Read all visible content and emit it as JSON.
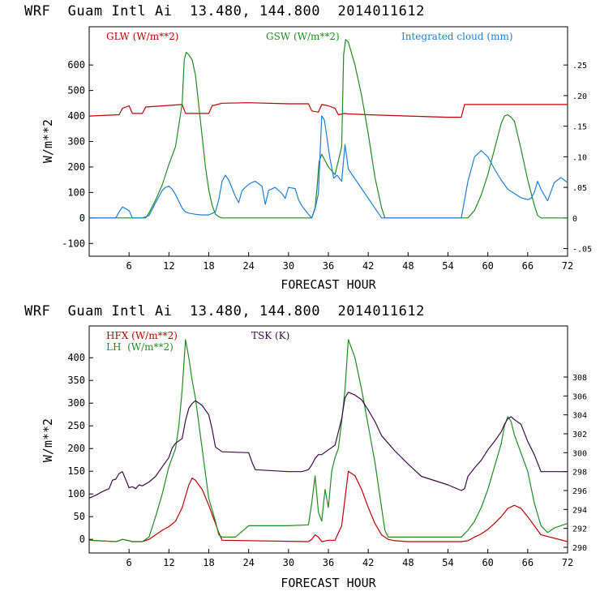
{
  "charts": [
    {
      "title": "WRF  Guam Intl Ai  13.480, 144.800  2014011612",
      "xlabel": "FORECAST HOUR",
      "ylabel": "W/m**2",
      "xlim": [
        0,
        72
      ],
      "ylim": [
        -150,
        750
      ],
      "left_ticks": [
        -100,
        0,
        100,
        200,
        300,
        400,
        500,
        600
      ],
      "x_ticks": [
        6,
        12,
        18,
        24,
        30,
        36,
        42,
        48,
        54,
        60,
        66,
        72
      ],
      "right_axis": {
        "ylim": [
          -0.0625,
          0.3125
        ],
        "ticks": [
          ".25",
          ".20",
          ".15",
          ".10",
          ".05",
          "0",
          "-.05"
        ],
        "tick_values": [
          0.25,
          0.2,
          0.15,
          0.1,
          0.05,
          0,
          -0.05
        ]
      },
      "legend": [
        {
          "label": "GLW (W/m**2)",
          "color": "#c00000"
        },
        {
          "label": "GSW (W/m**2)",
          "color": "#228B22"
        },
        {
          "label": "Integrated cloud (mm)",
          "color": "#1e7fd6"
        }
      ]
    },
    {
      "title": "WRF  Guam Intl Ai  13.480, 144.800  2014011612",
      "xlabel": "FORECAST HOUR",
      "ylabel": "W/m**2",
      "xlim": [
        0,
        72
      ],
      "ylim": [
        -30,
        470
      ],
      "left_ticks": [
        0,
        50,
        100,
        150,
        200,
        250,
        300,
        350,
        400
      ],
      "x_ticks": [
        6,
        12,
        18,
        24,
        30,
        36,
        42,
        48,
        54,
        60,
        66,
        72
      ],
      "right_axis": {
        "ylim": [
          289.4,
          313.4
        ],
        "ticks": [
          "290",
          "292",
          "294",
          "296",
          "298",
          "300",
          "302",
          "304",
          "306",
          "308"
        ],
        "tick_values": [
          290,
          292,
          294,
          296,
          298,
          300,
          302,
          304,
          306,
          308
        ]
      },
      "legend": [
        {
          "label": "HFX (W/m**2)",
          "color": "#c00000"
        },
        {
          "label": "LH  (W/m**2)",
          "color": "#228B22"
        },
        {
          "label": "TSK (K)",
          "color": "#3d0a4a"
        }
      ]
    }
  ],
  "chart_data": [
    {
      "type": "line",
      "title": "WRF  Guam Intl Ai  13.480, 144.800  2014011612",
      "xlabel": "FORECAST HOUR",
      "ylabel": "W/m**2",
      "xlim": [
        0,
        72
      ],
      "ylim": [
        -150,
        750
      ],
      "series": [
        {
          "name": "GLW (W/m**2)",
          "axis": "left",
          "color": "#c00000",
          "x": [
            0,
            4.5,
            5,
            6,
            6.5,
            8,
            8.5,
            14,
            14.5,
            18,
            18.5,
            20,
            24,
            30,
            33,
            33.5,
            34.5,
            35,
            36,
            37,
            37.5,
            38.5,
            39,
            42,
            48,
            54,
            56,
            56.5,
            60,
            66,
            72
          ],
          "y": [
            400,
            405,
            430,
            440,
            410,
            410,
            435,
            445,
            410,
            410,
            440,
            450,
            452,
            448,
            448,
            420,
            415,
            445,
            440,
            430,
            405,
            410,
            408,
            405,
            400,
            395,
            395,
            445,
            445,
            445,
            445
          ]
        },
        {
          "name": "GSW (W/m**2)",
          "axis": "left",
          "color": "#228B22",
          "x": [
            0,
            8.5,
            9,
            10,
            11,
            12,
            13,
            14,
            14.3,
            14.6,
            15,
            15.5,
            16,
            16.5,
            17,
            17.5,
            18,
            18.5,
            19,
            19.5,
            20,
            33.5,
            34,
            34.3,
            34.6,
            35,
            36,
            37,
            38,
            38.3,
            38.6,
            39,
            40,
            41,
            42,
            43,
            44,
            44.5,
            57,
            58,
            59,
            60,
            61,
            62,
            62.5,
            63,
            63.5,
            64,
            65,
            66,
            67,
            67.5,
            68,
            72
          ],
          "y": [
            0,
            0,
            20,
            70,
            130,
            210,
            280,
            450,
            620,
            650,
            640,
            620,
            560,
            440,
            320,
            200,
            110,
            50,
            15,
            5,
            0,
            0,
            40,
            120,
            220,
            250,
            200,
            170,
            280,
            640,
            700,
            690,
            600,
            480,
            330,
            160,
            40,
            0,
            0,
            30,
            90,
            170,
            270,
            370,
            400,
            405,
            395,
            380,
            270,
            150,
            50,
            10,
            0,
            0
          ]
        },
        {
          "name": "Integrated cloud (mm)",
          "axis": "right",
          "color": "#1e7fd6",
          "x": [
            0,
            4,
            4.5,
            5,
            6,
            6.5,
            8,
            9,
            10,
            11,
            11.5,
            12,
            12.5,
            13,
            14,
            14.5,
            15,
            16,
            17,
            18,
            19,
            19.5,
            20,
            20.5,
            21,
            22,
            22.5,
            23,
            24,
            24.5,
            25,
            26,
            26.5,
            27,
            28,
            29,
            29.5,
            30,
            31,
            31.5,
            32,
            33,
            33.5,
            34,
            34.5,
            35,
            35.4,
            35.8,
            36.2,
            36.8,
            37.3,
            38,
            38.5,
            39,
            44,
            54,
            56,
            57,
            58,
            59,
            60,
            61,
            62,
            63,
            64,
            65,
            66,
            66.5,
            67,
            67.5,
            68,
            69,
            70,
            71,
            72
          ],
          "y": [
            0,
            0,
            0.01,
            0.018,
            0.012,
            0,
            0,
            0.004,
            0.025,
            0.045,
            0.05,
            0.052,
            0.047,
            0.038,
            0.016,
            0.01,
            0.008,
            0.006,
            0.005,
            0.005,
            0.01,
            0.03,
            0.06,
            0.07,
            0.062,
            0.035,
            0.025,
            0.045,
            0.055,
            0.058,
            0.06,
            0.052,
            0.022,
            0.045,
            0.05,
            0.04,
            0.032,
            0.05,
            0.048,
            0.03,
            0.02,
            0.006,
            0,
            0.015,
            0.04,
            0.167,
            0.16,
            0.13,
            0.1,
            0.065,
            0.07,
            0.06,
            0.12,
            0.08,
            0,
            0,
            0,
            0.06,
            0.1,
            0.11,
            0.1,
            0.08,
            0.062,
            0.047,
            0.04,
            0.033,
            0.03,
            0.032,
            0.042,
            0.06,
            0.047,
            0.028,
            0.058,
            0.066,
            0.058
          ]
        }
      ]
    },
    {
      "type": "line",
      "title": "WRF  Guam Intl Ai  13.480, 144.800  2014011612",
      "xlabel": "FORECAST HOUR",
      "ylabel": "W/m**2",
      "xlim": [
        0,
        72
      ],
      "ylim": [
        -30,
        470
      ],
      "series": [
        {
          "name": "HFX (W/m**2)",
          "axis": "left",
          "color": "#c00000",
          "x": [
            0,
            4,
            4.5,
            5,
            6,
            6.5,
            8,
            9,
            10,
            11,
            12,
            13,
            14,
            15,
            15.5,
            16,
            17,
            18,
            19,
            19.5,
            20,
            33,
            33.5,
            34,
            34.5,
            35,
            36,
            37,
            38,
            38.5,
            39,
            40,
            41,
            42,
            43,
            44,
            45,
            46,
            48,
            56,
            57,
            58,
            59,
            60,
            61,
            62,
            63,
            64,
            65,
            66,
            67,
            68,
            72
          ],
          "y": [
            -2,
            -5,
            -3,
            0,
            -3,
            -5,
            -5,
            0,
            10,
            20,
            28,
            40,
            70,
            120,
            135,
            130,
            110,
            75,
            35,
            15,
            -2,
            -5,
            0,
            10,
            5,
            -5,
            -2,
            -2,
            30,
            90,
            150,
            140,
            110,
            70,
            35,
            10,
            0,
            -3,
            -5,
            -5,
            -3,
            5,
            12,
            22,
            35,
            50,
            68,
            75,
            68,
            50,
            30,
            10,
            -5
          ]
        },
        {
          "name": "LH  (W/m**2)",
          "axis": "left",
          "color": "#228B22",
          "x": [
            0,
            4,
            4.5,
            5,
            6,
            6.5,
            8,
            9,
            10,
            11,
            12,
            13,
            13.5,
            14,
            14.5,
            15,
            15.5,
            16,
            17,
            18,
            19,
            19.5,
            20,
            22,
            24,
            30,
            33,
            33.5,
            34,
            34.5,
            35,
            35.5,
            36,
            36.5,
            37,
            37.5,
            38,
            38.5,
            39,
            40,
            41,
            42,
            43,
            44,
            44.5,
            45,
            46,
            48,
            50,
            56,
            57,
            58,
            59,
            60,
            61,
            62,
            62.5,
            63,
            63.5,
            64,
            65,
            66,
            67,
            68,
            69,
            70,
            72
          ],
          "y": [
            -2,
            -5,
            -3,
            0,
            -3,
            -5,
            -5,
            5,
            50,
            100,
            160,
            200,
            250,
            330,
            440,
            400,
            350,
            310,
            200,
            90,
            40,
            10,
            5,
            5,
            30,
            30,
            32,
            80,
            140,
            60,
            40,
            110,
            70,
            150,
            180,
            200,
            260,
            330,
            440,
            400,
            330,
            250,
            170,
            70,
            20,
            5,
            5,
            5,
            5,
            5,
            20,
            40,
            70,
            110,
            160,
            210,
            250,
            270,
            260,
            230,
            190,
            150,
            80,
            30,
            15,
            25,
            35
          ]
        },
        {
          "name": "TSK (K)",
          "axis": "right",
          "color": "#3d0a4a",
          "x": [
            0,
            1,
            2,
            3,
            3.5,
            4,
            4.5,
            5,
            6,
            6.5,
            7,
            7.5,
            8,
            9,
            10,
            11,
            12,
            12.5,
            13,
            14,
            14.5,
            15,
            15.5,
            16,
            17,
            18,
            18.5,
            19,
            20,
            24,
            24.5,
            25,
            30,
            32,
            33,
            33.5,
            34,
            34.5,
            35,
            36,
            37,
            38,
            38.5,
            39,
            40,
            41,
            42,
            43,
            44,
            46,
            48,
            50,
            54,
            56,
            56.5,
            57,
            58,
            59,
            60,
            61,
            62,
            62.5,
            63,
            63.5,
            64,
            65,
            66,
            67,
            68,
            72
          ],
          "y": [
            295.2,
            295.5,
            295.9,
            296.2,
            297.1,
            297.2,
            297.8,
            298,
            296.3,
            296.4,
            296.2,
            296.6,
            296.5,
            296.9,
            297.5,
            298.5,
            299.5,
            300.5,
            301,
            301.5,
            303.4,
            304.7,
            305.2,
            305.5,
            305,
            304,
            302.5,
            300.6,
            300.1,
            300,
            299,
            298.2,
            298,
            298,
            298.2,
            298.7,
            299.4,
            299.8,
            299.8,
            300.3,
            300.8,
            303.6,
            305.8,
            306.4,
            306.1,
            305.6,
            304.5,
            303.3,
            301.8,
            300.2,
            298.8,
            297.5,
            296.6,
            296,
            296.2,
            297.5,
            298.4,
            299.2,
            300.3,
            301.2,
            302.2,
            303,
            303.6,
            303.8,
            303.5,
            303,
            301.2,
            299.8,
            298,
            298
          ]
        }
      ]
    }
  ]
}
